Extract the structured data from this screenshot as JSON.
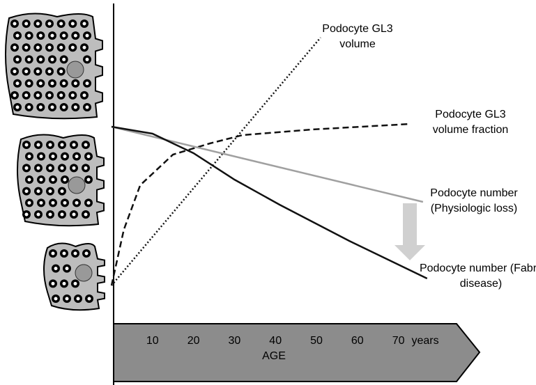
{
  "chart_data": {
    "type": "line",
    "xlabel": "AGE",
    "x_unit": "years",
    "xlim": [
      0,
      90
    ],
    "ylim": [
      0,
      100
    ],
    "xticks": [
      10,
      20,
      30,
      40,
      50,
      60,
      70
    ],
    "series": [
      {
        "name": "Podocyte GL3 volume",
        "color": "#111111",
        "style": "dotted",
        "x": [
          0,
          51
        ],
        "values": [
          0,
          89
        ]
      },
      {
        "name": "Podocyte GL3 volume fraction",
        "color": "#111111",
        "style": "dashed",
        "x": [
          0,
          3,
          7,
          15,
          24,
          32,
          49,
          73
        ],
        "values": [
          0,
          20,
          36,
          47,
          51,
          54,
          56,
          58
        ]
      },
      {
        "name": "Podocyte number (Physiologic loss)",
        "color": "#a0a0a0",
        "style": "solid",
        "x": [
          0,
          76
        ],
        "values": [
          57,
          30
        ]
      },
      {
        "name": "Podocyte number (Fabry disease)",
        "color": "#111111",
        "style": "solid",
        "x": [
          0,
          10,
          20,
          30,
          41,
          58,
          77
        ],
        "values": [
          57,
          54.5,
          47.5,
          38,
          29,
          16,
          2.5
        ]
      }
    ]
  }
}
